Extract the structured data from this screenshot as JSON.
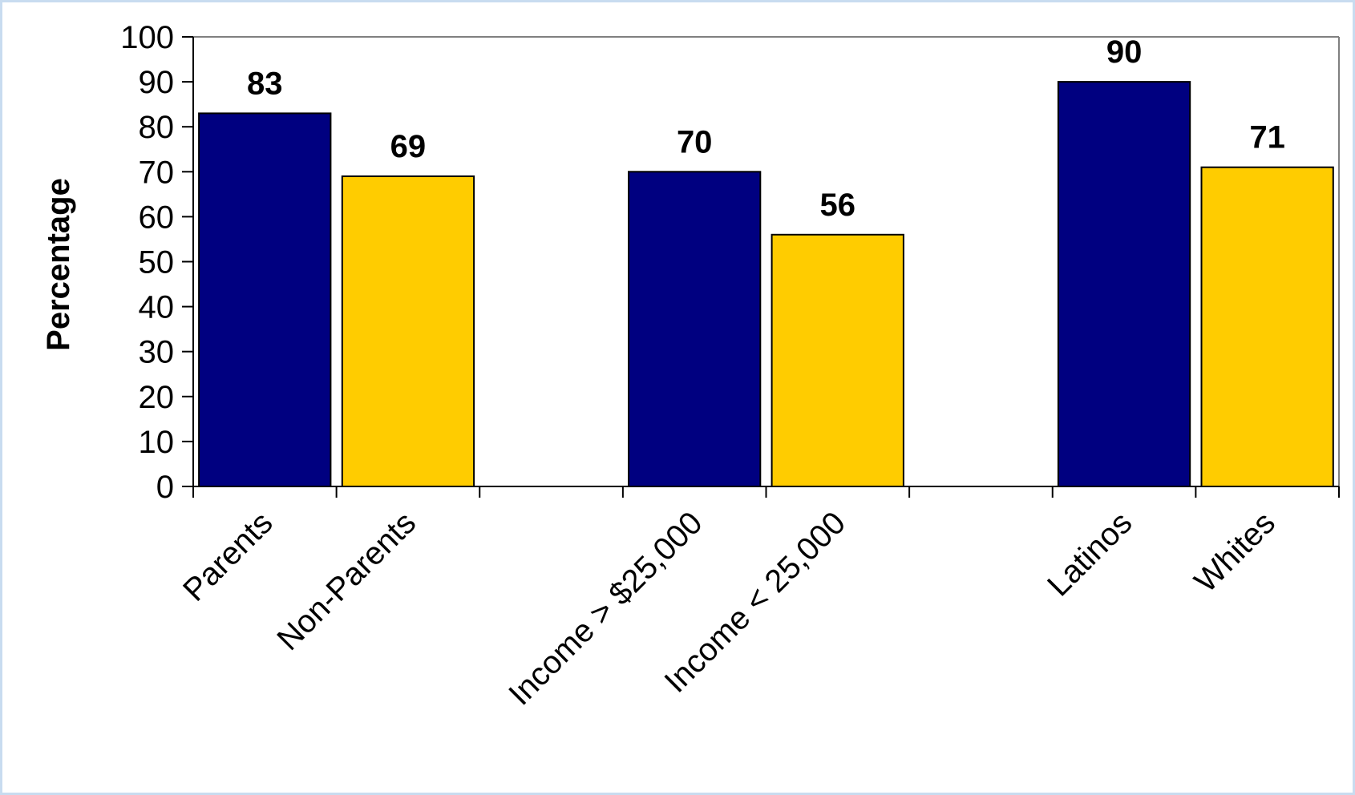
{
  "chart_data": {
    "type": "bar",
    "categories": [
      "Parents",
      "Non-Parents",
      "",
      "Income > $25,000",
      "Income < 25,000",
      "",
      "Latinos",
      "Whites"
    ],
    "values": [
      83,
      69,
      null,
      70,
      56,
      null,
      90,
      71
    ],
    "bar_colors": [
      "#000080",
      "#ffcc00",
      null,
      "#000080",
      "#ffcc00",
      null,
      "#000080",
      "#ffcc00"
    ],
    "title": "",
    "xlabel": "",
    "ylabel": "Percentage",
    "ylim": [
      0,
      100
    ],
    "yticks": [
      0,
      10,
      20,
      30,
      40,
      50,
      60,
      70,
      80,
      90,
      100
    ],
    "grid": false,
    "legend": "none"
  },
  "colors": {
    "navy": "#000080",
    "gold": "#ffcc00",
    "frame": "#c8dcf0"
  }
}
